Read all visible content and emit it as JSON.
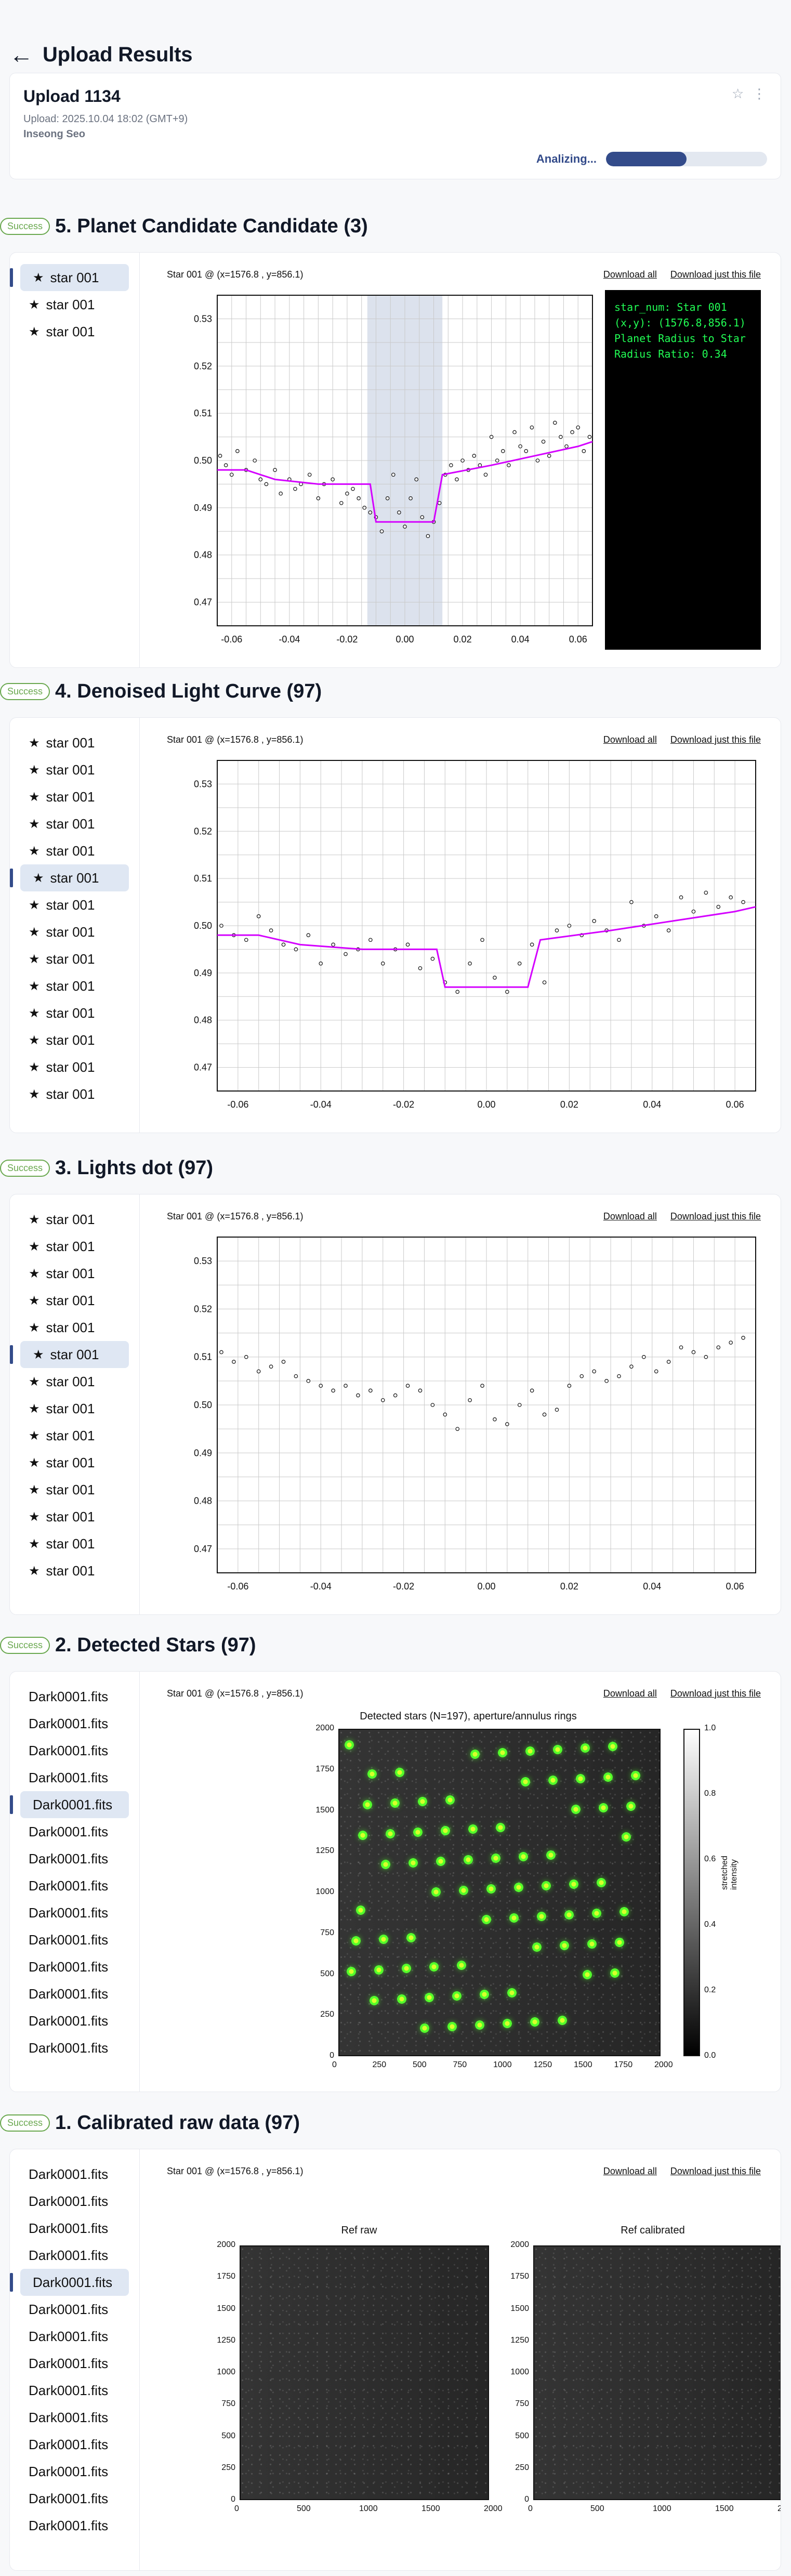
{
  "header": {
    "back_arrow": "←",
    "title": "Upload Results"
  },
  "upload": {
    "name": "Upload 1134",
    "meta": "Upload: 2025.10.04 18:02 (GMT+9)",
    "user": "Inseong Seo",
    "actions": {
      "star_icon": "star-outline-icon",
      "more_icon": "kebab-icon"
    },
    "progress": {
      "label": "Analizing...",
      "fraction": 0.5
    }
  },
  "sections": [
    {
      "id": "s5",
      "status": "Success",
      "title": "5. Planet Candidate Candidate (3)",
      "list": {
        "type": "stars",
        "items": [
          "star 001",
          "star 001",
          "star 001"
        ],
        "selected_index": 0
      },
      "plot": {
        "caption": "Star 001 @ (x=1576.8 , y=856.1)",
        "download_all": "Download all",
        "download_file": "Download just this file",
        "terminal": {
          "lines": [
            "star_num: Star 001",
            "(x,y): (1576.8,856.1)",
            "",
            "Planet Radius to Star",
            "Radius Ratio: 0.34"
          ]
        }
      },
      "chart_data": {
        "type": "scatter",
        "title": "",
        "xlabel": "",
        "ylabel": "",
        "xlim": [
          -0.065,
          0.065
        ],
        "ylim": [
          0.465,
          0.535
        ],
        "x_ticks": [
          "-0.06",
          "-0.04",
          "-0.02",
          "0.00",
          "0.02",
          "0.04",
          "0.06"
        ],
        "y_ticks": [
          "0.53",
          "0.52",
          "0.51",
          "0.50",
          "0.49",
          "0.48",
          "0.47"
        ],
        "highlight_x": [
          -0.013,
          0.013
        ],
        "line_series": {
          "name": "",
          "x": [
            -0.065,
            -0.055,
            -0.045,
            -0.03,
            -0.012,
            -0.01,
            0.01,
            0.013,
            0.03,
            0.045,
            0.06,
            0.065
          ],
          "y": [
            0.498,
            0.498,
            0.496,
            0.495,
            0.495,
            0.487,
            0.487,
            0.497,
            0.499,
            0.501,
            0.503,
            0.504
          ]
        },
        "scatter_series": {
          "name": "",
          "x": [
            -0.064,
            -0.062,
            -0.06,
            -0.058,
            -0.055,
            -0.052,
            -0.05,
            -0.048,
            -0.045,
            -0.043,
            -0.04,
            -0.038,
            -0.036,
            -0.033,
            -0.03,
            -0.028,
            -0.025,
            -0.022,
            -0.02,
            -0.018,
            -0.016,
            -0.014,
            -0.012,
            -0.01,
            -0.008,
            -0.006,
            -0.004,
            -0.002,
            0.0,
            0.002,
            0.004,
            0.006,
            0.008,
            0.01,
            0.012,
            0.014,
            0.016,
            0.018,
            0.02,
            0.022,
            0.024,
            0.026,
            0.028,
            0.03,
            0.032,
            0.034,
            0.036,
            0.038,
            0.04,
            0.042,
            0.044,
            0.046,
            0.048,
            0.05,
            0.052,
            0.054,
            0.056,
            0.058,
            0.06,
            0.062,
            0.064
          ],
          "y": [
            0.501,
            0.499,
            0.497,
            0.502,
            0.498,
            0.5,
            0.496,
            0.495,
            0.498,
            0.493,
            0.496,
            0.494,
            0.495,
            0.497,
            0.492,
            0.495,
            0.496,
            0.491,
            0.493,
            0.494,
            0.492,
            0.49,
            0.489,
            0.488,
            0.485,
            0.492,
            0.497,
            0.489,
            0.486,
            0.492,
            0.496,
            0.488,
            0.484,
            0.487,
            0.491,
            0.497,
            0.499,
            0.496,
            0.5,
            0.498,
            0.501,
            0.499,
            0.497,
            0.505,
            0.5,
            0.502,
            0.499,
            0.506,
            0.503,
            0.502,
            0.507,
            0.5,
            0.504,
            0.501,
            0.508,
            0.505,
            0.503,
            0.506,
            0.507,
            0.502,
            0.505
          ]
        }
      }
    },
    {
      "id": "s4",
      "status": "Success",
      "title": "4. Denoised Light Curve (97)",
      "list": {
        "type": "stars",
        "items": [
          "star 001",
          "star 001",
          "star 001",
          "star 001",
          "star 001",
          "star 001",
          "star 001",
          "star 001",
          "star 001",
          "star 001",
          "star 001",
          "star 001",
          "star 001",
          "star 001"
        ],
        "selected_index": 5
      },
      "plot": {
        "caption": "Star 001 @ (x=1576.8 , y=856.1)",
        "download_all": "Download all",
        "download_file": "Download just this file"
      },
      "chart_data": {
        "type": "scatter",
        "title": "",
        "xlabel": "",
        "ylabel": "",
        "xlim": [
          -0.065,
          0.065
        ],
        "ylim": [
          0.465,
          0.535
        ],
        "x_ticks": [
          "-0.06",
          "-0.04",
          "-0.02",
          "0.00",
          "0.02",
          "0.04",
          "0.06"
        ],
        "y_ticks": [
          "0.53",
          "0.52",
          "0.51",
          "0.50",
          "0.49",
          "0.48",
          "0.47"
        ],
        "line_series": {
          "name": "",
          "x": [
            -0.065,
            -0.055,
            -0.045,
            -0.03,
            -0.012,
            -0.01,
            0.01,
            0.013,
            0.03,
            0.045,
            0.06,
            0.065
          ],
          "y": [
            0.498,
            0.498,
            0.496,
            0.495,
            0.495,
            0.487,
            0.487,
            0.497,
            0.499,
            0.501,
            0.503,
            0.504
          ]
        },
        "scatter_series": {
          "name": "",
          "x": [
            -0.064,
            -0.061,
            -0.058,
            -0.055,
            -0.052,
            -0.049,
            -0.046,
            -0.043,
            -0.04,
            -0.037,
            -0.034,
            -0.031,
            -0.028,
            -0.025,
            -0.022,
            -0.019,
            -0.016,
            -0.013,
            -0.01,
            -0.007,
            -0.004,
            -0.001,
            0.002,
            0.005,
            0.008,
            0.011,
            0.014,
            0.017,
            0.02,
            0.023,
            0.026,
            0.029,
            0.032,
            0.035,
            0.038,
            0.041,
            0.044,
            0.047,
            0.05,
            0.053,
            0.056,
            0.059,
            0.062
          ],
          "y": [
            0.5,
            0.498,
            0.497,
            0.502,
            0.499,
            0.496,
            0.495,
            0.498,
            0.492,
            0.496,
            0.494,
            0.495,
            0.497,
            0.492,
            0.495,
            0.496,
            0.491,
            0.493,
            0.488,
            0.486,
            0.492,
            0.497,
            0.489,
            0.486,
            0.492,
            0.496,
            0.488,
            0.499,
            0.5,
            0.498,
            0.501,
            0.499,
            0.497,
            0.505,
            0.5,
            0.502,
            0.499,
            0.506,
            0.503,
            0.507,
            0.504,
            0.506,
            0.505
          ]
        }
      }
    },
    {
      "id": "s3",
      "status": "Success",
      "title": "3. Lights dot (97)",
      "list": {
        "type": "stars",
        "items": [
          "star 001",
          "star 001",
          "star 001",
          "star 001",
          "star 001",
          "star 001",
          "star 001",
          "star 001",
          "star 001",
          "star 001",
          "star 001",
          "star 001",
          "star 001",
          "star 001"
        ],
        "selected_index": 5
      },
      "plot": {
        "caption": "Star 001 @ (x=1576.8 , y=856.1)",
        "download_all": "Download all",
        "download_file": "Download just this file"
      },
      "chart_data": {
        "type": "scatter",
        "title": "",
        "xlabel": "",
        "ylabel": "",
        "xlim": [
          -0.065,
          0.065
        ],
        "ylim": [
          0.465,
          0.535
        ],
        "x_ticks": [
          "-0.06",
          "-0.04",
          "-0.02",
          "0.00",
          "0.02",
          "0.04",
          "0.06"
        ],
        "y_ticks": [
          "0.53",
          "0.52",
          "0.51",
          "0.50",
          "0.49",
          "0.48",
          "0.47"
        ],
        "scatter_series": {
          "name": "",
          "x": [
            -0.064,
            -0.061,
            -0.058,
            -0.055,
            -0.052,
            -0.049,
            -0.046,
            -0.043,
            -0.04,
            -0.037,
            -0.034,
            -0.031,
            -0.028,
            -0.025,
            -0.022,
            -0.019,
            -0.016,
            -0.013,
            -0.01,
            -0.007,
            -0.004,
            -0.001,
            0.002,
            0.005,
            0.008,
            0.011,
            0.014,
            0.017,
            0.02,
            0.023,
            0.026,
            0.029,
            0.032,
            0.035,
            0.038,
            0.041,
            0.044,
            0.047,
            0.05,
            0.053,
            0.056,
            0.059,
            0.062
          ],
          "y": [
            0.511,
            0.509,
            0.51,
            0.507,
            0.508,
            0.509,
            0.506,
            0.505,
            0.504,
            0.503,
            0.504,
            0.502,
            0.503,
            0.501,
            0.502,
            0.504,
            0.503,
            0.5,
            0.498,
            0.495,
            0.501,
            0.504,
            0.497,
            0.496,
            0.5,
            0.503,
            0.498,
            0.499,
            0.504,
            0.506,
            0.507,
            0.505,
            0.506,
            0.508,
            0.51,
            0.507,
            0.509,
            0.512,
            0.511,
            0.51,
            0.512,
            0.513,
            0.514
          ]
        }
      }
    },
    {
      "id": "s2",
      "status": "Success",
      "title": "2. Detected Stars (97)",
      "list": {
        "type": "files",
        "items": [
          "Dark0001.fits",
          "Dark0001.fits",
          "Dark0001.fits",
          "Dark0001.fits",
          "Dark0001.fits",
          "Dark0001.fits",
          "Dark0001.fits",
          "Dark0001.fits",
          "Dark0001.fits",
          "Dark0001.fits",
          "Dark0001.fits",
          "Dark0001.fits",
          "Dark0001.fits",
          "Dark0001.fits"
        ],
        "selected_index": 4
      },
      "plot": {
        "caption": "Star 001 @ (x=1576.8 , y=856.1)",
        "download_all": "Download all",
        "download_file": "Download just this file",
        "figure_title": "Detected stars (N=197), aperture/annulus rings",
        "x_ticks": [
          "0",
          "250",
          "500",
          "750",
          "1000",
          "1250",
          "1500",
          "1750",
          "2000"
        ],
        "y_ticks": [
          "2000",
          "1750",
          "1500",
          "1250",
          "1000",
          "750",
          "500",
          "250",
          "0"
        ],
        "colorbar": {
          "label": "stretched intensity",
          "ticks": [
            "1.0",
            "0.8",
            "0.6",
            "0.4",
            "0.2",
            "0.0"
          ]
        }
      }
    },
    {
      "id": "s1",
      "status": "Success",
      "title": "1. Calibrated raw data (97)",
      "list": {
        "type": "files",
        "items": [
          "Dark0001.fits",
          "Dark0001.fits",
          "Dark0001.fits",
          "Dark0001.fits",
          "Dark0001.fits",
          "Dark0001.fits",
          "Dark0001.fits",
          "Dark0001.fits",
          "Dark0001.fits",
          "Dark0001.fits",
          "Dark0001.fits",
          "Dark0001.fits",
          "Dark0001.fits",
          "Dark0001.fits"
        ],
        "selected_index": 4
      },
      "plot": {
        "caption": "Star 001 @ (x=1576.8 , y=856.1)",
        "download_all": "Download all",
        "download_file": "Download just this file",
        "left_title": "Ref raw",
        "right_title": "Ref calibrated",
        "x_ticks": [
          "0",
          "500",
          "1000",
          "1500",
          "2000"
        ],
        "y_ticks": [
          "2000",
          "1750",
          "1500",
          "1250",
          "1000",
          "750",
          "500",
          "250",
          "0"
        ]
      }
    }
  ]
}
